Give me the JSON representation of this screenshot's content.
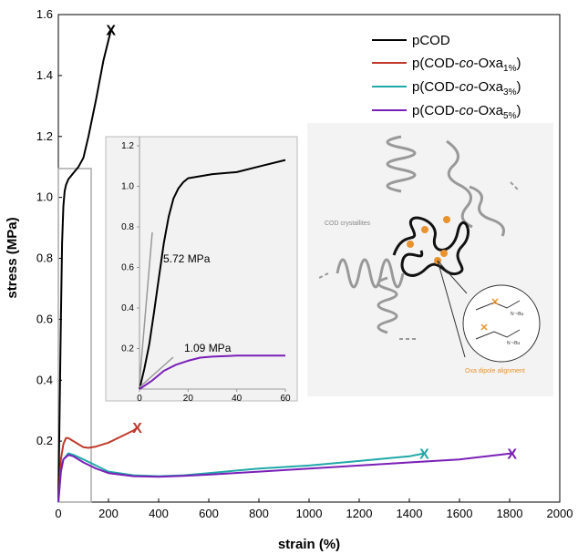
{
  "chart_data": {
    "type": "line",
    "xlabel": "strain (%)",
    "ylabel": "stress (MPa)",
    "xlim": [
      0,
      2000
    ],
    "ylim": [
      0,
      1.6
    ],
    "x_ticks": [
      "0",
      "200",
      "400",
      "600",
      "800",
      "1000",
      "1200",
      "1400",
      "1600",
      "1800",
      "2000"
    ],
    "y_ticks": [
      "0.2",
      "0.4",
      "0.6",
      "0.8",
      "1.0",
      "1.2",
      "1.4",
      "1.6"
    ],
    "grid": false,
    "legend_position": "top-right",
    "series": [
      {
        "name": "pCOD",
        "color": "#000000",
        "x": [
          0,
          5,
          10,
          15,
          20,
          25,
          30,
          40,
          50,
          60,
          80,
          100,
          120,
          150,
          180,
          210
        ],
        "y": [
          0,
          0.3,
          0.6,
          0.85,
          0.97,
          1.02,
          1.04,
          1.06,
          1.07,
          1.08,
          1.1,
          1.13,
          1.2,
          1.32,
          1.45,
          1.55
        ],
        "end_marker": "X"
      },
      {
        "name": "p(COD-co-Oxa1%)",
        "color": "#c0392b",
        "x": [
          0,
          10,
          20,
          30,
          40,
          50,
          60,
          80,
          100,
          120,
          150,
          200,
          250,
          300,
          315
        ],
        "y": [
          0,
          0.14,
          0.19,
          0.21,
          0.21,
          0.205,
          0.2,
          0.19,
          0.18,
          0.178,
          0.182,
          0.195,
          0.215,
          0.235,
          0.245
        ],
        "end_marker": "X"
      },
      {
        "name": "p(COD-co-Oxa3%)",
        "color": "#20a8a8",
        "x": [
          0,
          10,
          20,
          40,
          60,
          100,
          150,
          200,
          300,
          400,
          500,
          600,
          800,
          1000,
          1200,
          1400,
          1460
        ],
        "y": [
          0,
          0.1,
          0.14,
          0.16,
          0.155,
          0.14,
          0.12,
          0.1,
          0.088,
          0.085,
          0.088,
          0.095,
          0.11,
          0.12,
          0.135,
          0.15,
          0.16
        ],
        "end_marker": "X"
      },
      {
        "name": "p(COD-co-Oxa5%)",
        "color": "#7a1fb8",
        "x": [
          0,
          10,
          20,
          40,
          60,
          100,
          150,
          200,
          300,
          400,
          500,
          600,
          800,
          1000,
          1200,
          1400,
          1600,
          1810
        ],
        "y": [
          0,
          0.1,
          0.14,
          0.155,
          0.15,
          0.13,
          0.11,
          0.095,
          0.085,
          0.083,
          0.086,
          0.09,
          0.1,
          0.11,
          0.12,
          0.13,
          0.14,
          0.16
        ],
        "end_marker": "X"
      }
    ],
    "legend_labels": {
      "pCOD": "pCOD",
      "oxa1_pre": "p(COD-",
      "oxa1_co": "co",
      "oxa1_mid": "-Oxa",
      "oxa1_sub": "1%",
      "oxa1_post": ")",
      "oxa3_pre": "p(COD-",
      "oxa3_co": "co",
      "oxa3_mid": "-Oxa",
      "oxa3_sub": "3%",
      "oxa3_post": ")",
      "oxa5_pre": "p(COD-",
      "oxa5_co": "co",
      "oxa5_mid": "-Oxa",
      "oxa5_sub": "5%",
      "oxa5_post": ")"
    },
    "inset": {
      "xlim": [
        0,
        60
      ],
      "ylim": [
        0,
        1.2
      ],
      "x_ticks": [
        "0",
        "20",
        "40",
        "60"
      ],
      "y_ticks": [
        "0.2",
        "0.4",
        "0.6",
        "0.8",
        "1.0",
        "1.2"
      ],
      "series": [
        {
          "name": "pCOD",
          "color": "#000000",
          "x": [
            0,
            2,
            4,
            6,
            8,
            10,
            12,
            14,
            16,
            18,
            20,
            25,
            30,
            40,
            50,
            60
          ],
          "y": [
            0,
            0.1,
            0.22,
            0.38,
            0.55,
            0.72,
            0.85,
            0.94,
            0.99,
            1.02,
            1.04,
            1.05,
            1.06,
            1.07,
            1.1,
            1.13
          ]
        },
        {
          "name": "p(COD-co-Oxa5%)",
          "color": "#7a1fb8",
          "x": [
            0,
            5,
            10,
            15,
            20,
            25,
            30,
            40,
            50,
            60
          ],
          "y": [
            0,
            0.04,
            0.09,
            0.12,
            0.14,
            0.155,
            0.16,
            0.165,
            0.165,
            0.165
          ]
        }
      ],
      "annotations": [
        "5.72 MPa",
        "1.09 MPa"
      ]
    }
  },
  "schematic": {
    "crystallites_label": "COD crystallites",
    "dipole_label": "Oxa dipole alignment",
    "nbu_label": "N⁻ⁿBu"
  }
}
